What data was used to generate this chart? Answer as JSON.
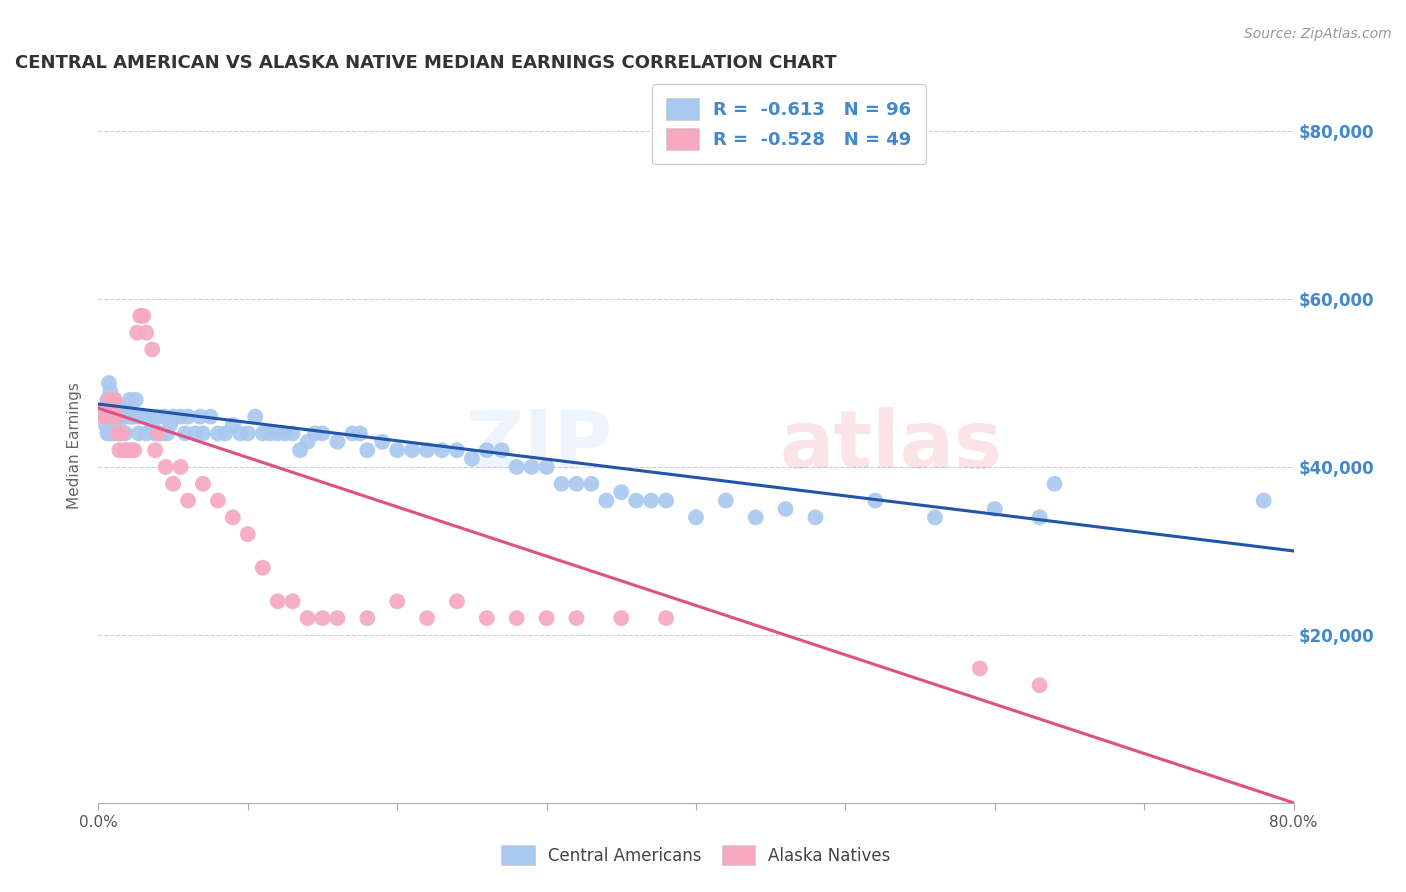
{
  "title": "CENTRAL AMERICAN VS ALASKA NATIVE MEDIAN EARNINGS CORRELATION CHART",
  "source": "Source: ZipAtlas.com",
  "ylabel": "Median Earnings",
  "ytick_labels": [
    "$20,000",
    "$40,000",
    "$60,000",
    "$80,000"
  ],
  "ytick_values": [
    20000,
    40000,
    60000,
    80000
  ],
  "xlim": [
    0.0,
    0.8
  ],
  "ylim": [
    0,
    85000
  ],
  "blue_color": "#A8C8F0",
  "pink_color": "#F5A8C0",
  "blue_line_color": "#2255AA",
  "pink_line_color": "#E05080",
  "watermark_blue": "#A8C8F0",
  "watermark_pink": "#E8788A",
  "background_color": "#FFFFFF",
  "grid_color": "#CCCCDD",
  "title_color": "#333333",
  "axis_label_color": "#666666",
  "right_tick_color": "#4488CC",
  "legend_text_color": "#4488CC",
  "blue_scatter_x": [
    0.004,
    0.005,
    0.005,
    0.006,
    0.006,
    0.007,
    0.007,
    0.008,
    0.008,
    0.009,
    0.009,
    0.01,
    0.01,
    0.011,
    0.012,
    0.013,
    0.014,
    0.015,
    0.016,
    0.017,
    0.018,
    0.02,
    0.021,
    0.022,
    0.024,
    0.025,
    0.027,
    0.028,
    0.03,
    0.032,
    0.034,
    0.036,
    0.038,
    0.04,
    0.042,
    0.044,
    0.046,
    0.048,
    0.05,
    0.055,
    0.058,
    0.06,
    0.065,
    0.068,
    0.07,
    0.075,
    0.08,
    0.085,
    0.09,
    0.095,
    0.1,
    0.105,
    0.11,
    0.115,
    0.12,
    0.125,
    0.13,
    0.135,
    0.14,
    0.145,
    0.15,
    0.16,
    0.17,
    0.175,
    0.18,
    0.19,
    0.2,
    0.21,
    0.22,
    0.23,
    0.24,
    0.25,
    0.26,
    0.27,
    0.28,
    0.29,
    0.3,
    0.31,
    0.32,
    0.33,
    0.34,
    0.35,
    0.36,
    0.37,
    0.38,
    0.4,
    0.42,
    0.44,
    0.46,
    0.48,
    0.52,
    0.56,
    0.6,
    0.63,
    0.64,
    0.78
  ],
  "blue_scatter_y": [
    46000,
    47000,
    45000,
    48000,
    44000,
    50000,
    46000,
    49000,
    44000,
    47000,
    46000,
    48000,
    44000,
    47000,
    46000,
    45000,
    44000,
    46000,
    47000,
    46000,
    44000,
    46000,
    48000,
    46000,
    46000,
    48000,
    44000,
    46000,
    46000,
    44000,
    46000,
    45000,
    44000,
    46000,
    44000,
    46000,
    44000,
    45000,
    46000,
    46000,
    44000,
    46000,
    44000,
    46000,
    44000,
    46000,
    44000,
    44000,
    45000,
    44000,
    44000,
    46000,
    44000,
    44000,
    44000,
    44000,
    44000,
    42000,
    43000,
    44000,
    44000,
    43000,
    44000,
    44000,
    42000,
    43000,
    42000,
    42000,
    42000,
    42000,
    42000,
    41000,
    42000,
    42000,
    40000,
    40000,
    40000,
    38000,
    38000,
    38000,
    36000,
    37000,
    36000,
    36000,
    36000,
    34000,
    36000,
    34000,
    35000,
    34000,
    36000,
    34000,
    35000,
    34000,
    38000,
    36000
  ],
  "pink_scatter_x": [
    0.004,
    0.005,
    0.006,
    0.007,
    0.008,
    0.009,
    0.01,
    0.011,
    0.012,
    0.013,
    0.014,
    0.016,
    0.018,
    0.02,
    0.022,
    0.024,
    0.026,
    0.028,
    0.03,
    0.032,
    0.036,
    0.038,
    0.04,
    0.045,
    0.05,
    0.055,
    0.06,
    0.07,
    0.08,
    0.09,
    0.1,
    0.11,
    0.12,
    0.13,
    0.14,
    0.15,
    0.16,
    0.18,
    0.2,
    0.22,
    0.24,
    0.26,
    0.28,
    0.3,
    0.32,
    0.35,
    0.38,
    0.59,
    0.63
  ],
  "pink_scatter_y": [
    46000,
    47000,
    46000,
    48000,
    46000,
    47000,
    46000,
    48000,
    46000,
    44000,
    42000,
    44000,
    42000,
    42000,
    42000,
    42000,
    56000,
    58000,
    58000,
    56000,
    54000,
    42000,
    44000,
    40000,
    38000,
    40000,
    36000,
    38000,
    36000,
    34000,
    32000,
    28000,
    24000,
    24000,
    22000,
    22000,
    22000,
    22000,
    24000,
    22000,
    24000,
    22000,
    22000,
    22000,
    22000,
    22000,
    22000,
    16000,
    14000
  ],
  "blue_trend_x": [
    0.0,
    0.8
  ],
  "blue_trend_y": [
    47500,
    30000
  ],
  "pink_trend_x": [
    0.0,
    0.8
  ],
  "pink_trend_y": [
    47000,
    0
  ],
  "legend1_text": "R =  -0.613   N = 96",
  "legend2_text": "R =  -0.528   N = 49",
  "bottom_legend1": "Central Americans",
  "bottom_legend2": "Alaska Natives"
}
